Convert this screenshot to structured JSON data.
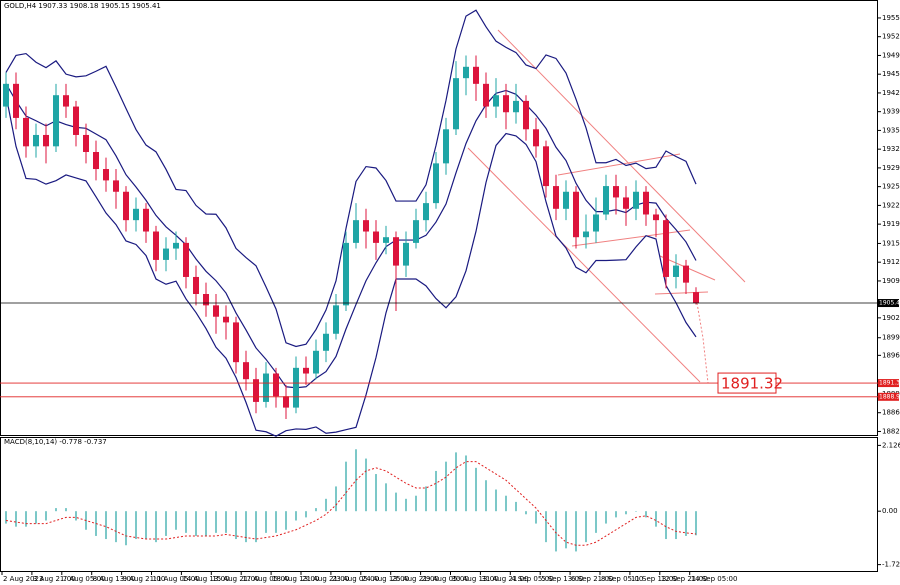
{
  "chart_data": {
    "type": "candlestick",
    "title": "GOLD,H4 1907.33 1908.18 1905.15 1905.41",
    "x_tick_labels": [
      "2 Aug 2023",
      "3 Aug 21:00",
      "7 Aug 05:00",
      "8 Aug 13:00",
      "9 Aug 21:00",
      "11 Aug 05:00",
      "14 Aug 13:00",
      "15 Aug 21:00",
      "17 Aug 05:00",
      "18 Aug 13:00",
      "21 Aug 21:00",
      "23 Aug 05:00",
      "24 Aug 13:00",
      "25 Aug 21:00",
      "29 Aug 05:00",
      "30 Aug 13:00",
      "31 Aug 21:00",
      "4 Sep 05:00",
      "5 Sep 13:00",
      "6 Sep 21:00",
      "8 Sep 05:00",
      "11 Sep 13:00",
      "12 Sep 21:00",
      "14 Sep 05:00"
    ],
    "open": [
      1940,
      1944,
      1938,
      1933,
      1935,
      1933,
      1942,
      1940,
      1935,
      1932,
      1929,
      1927,
      1925,
      1920,
      1922,
      1918,
      1913,
      1915,
      1916,
      1910,
      1907,
      1905,
      1903,
      1902,
      1895,
      1892,
      1888,
      1893,
      1889,
      1887,
      1894,
      1893,
      1897,
      1900,
      1905,
      1916,
      1920,
      1918,
      1916,
      1917,
      1912,
      1916,
      1920,
      1923,
      1930,
      1936,
      1945,
      1947,
      1944,
      1940,
      1942,
      1939,
      1941,
      1936,
      1933,
      1926,
      1922,
      1925,
      1917,
      1918,
      1921,
      1926,
      1924,
      1922,
      1925,
      1921,
      1920,
      1910,
      1912,
      1907.33
    ],
    "high": [
      1946,
      1946,
      1940,
      1937,
      1937,
      1944,
      1944,
      1941,
      1937,
      1934,
      1931,
      1929,
      1926,
      1924,
      1923,
      1919,
      1917,
      1918,
      1917,
      1912,
      1909,
      1907,
      1905,
      1903,
      1897,
      1894,
      1895,
      1894,
      1891,
      1896,
      1896,
      1899,
      1902,
      1907,
      1918,
      1923,
      1922,
      1920,
      1919,
      1918,
      1918,
      1922,
      1925,
      1932,
      1938,
      1948,
      1949,
      1949,
      1946,
      1945,
      1944,
      1944,
      1942,
      1938,
      1934,
      1928,
      1927,
      1926,
      1921,
      1924,
      1928,
      1928,
      1926,
      1927,
      1926,
      1922,
      1921,
      1914,
      1913,
      1908.18
    ],
    "low": [
      1938,
      1936,
      1931,
      1931,
      1930,
      1932,
      1938,
      1933,
      1930,
      1927,
      1925,
      1922,
      1918,
      1918,
      1916,
      1911,
      1911,
      1913,
      1908,
      1905,
      1903,
      1900,
      1899,
      1893,
      1890,
      1886,
      1887,
      1887,
      1885,
      1886,
      1891,
      1892,
      1895,
      1899,
      1904,
      1915,
      1915,
      1913,
      1914,
      1904,
      1910,
      1915,
      1918,
      1922,
      1928,
      1935,
      1942,
      1941,
      1938,
      1938,
      1936,
      1937,
      1934,
      1931,
      1924,
      1920,
      1920,
      1915,
      1915,
      1916,
      1920,
      1921,
      1919,
      1920,
      1919,
      1917,
      1908,
      1908,
      1907,
      1905.15
    ],
    "close": [
      1944,
      1938,
      1933,
      1935,
      1933,
      1942,
      1940,
      1935,
      1932,
      1929,
      1927,
      1925,
      1920,
      1922,
      1918,
      1913,
      1915,
      1916,
      1910,
      1907,
      1905,
      1903,
      1902,
      1895,
      1892,
      1888,
      1893,
      1889,
      1887,
      1894,
      1893,
      1897,
      1900,
      1905,
      1916,
      1920,
      1918,
      1916,
      1917,
      1912,
      1916,
      1920,
      1923,
      1930,
      1936,
      1945,
      1947,
      1944,
      1940,
      1942,
      1939,
      1941,
      1936,
      1933,
      1926,
      1922,
      1925,
      1917,
      1918,
      1921,
      1926,
      1924,
      1922,
      1925,
      1921,
      1920,
      1910,
      1912,
      1909,
      1905.41
    ],
    "bull_color": "#1fa5a5",
    "bear_color": "#dc143c",
    "ylim": [
      1882.0,
      1957.0
    ],
    "yticks": [
      {
        "value": 1955.6,
        "label": "1955.60"
      },
      {
        "value": 1952.3,
        "label": "1952.30"
      },
      {
        "value": 1949.0,
        "label": "1949.00"
      },
      {
        "value": 1945.7,
        "label": "1945.70"
      },
      {
        "value": 1942.4,
        "label": "1942.40"
      },
      {
        "value": 1939.1,
        "label": "1939.10"
      },
      {
        "value": 1935.8,
        "label": "1935.80"
      },
      {
        "value": 1932.5,
        "label": "1932.50"
      },
      {
        "value": 1929.2,
        "label": "1929.20"
      },
      {
        "value": 1925.9,
        "label": "1925.90"
      },
      {
        "value": 1922.6,
        "label": "1922.60"
      },
      {
        "value": 1919.3,
        "label": "1919.30"
      },
      {
        "value": 1915.9,
        "label": "1915.90"
      },
      {
        "value": 1912.6,
        "label": "1912.60"
      },
      {
        "value": 1909.3,
        "label": "1909.30"
      },
      {
        "value": 1902.8,
        "label": "1902.80"
      },
      {
        "value": 1899.3,
        "label": "1899.30"
      },
      {
        "value": 1896.2,
        "label": "1896.20"
      },
      {
        "value": 1889.4,
        "label": "1889.40"
      },
      {
        "value": 1886.1,
        "label": "1886.10"
      },
      {
        "value": 1882.8,
        "label": "1882.80"
      }
    ],
    "price_lines": [
      {
        "value": 1905.41,
        "label": "1905.41",
        "color": "#000000"
      },
      {
        "value": 1891.32,
        "label": "1891.32",
        "color": "#e02020"
      },
      {
        "value": 1888.9,
        "label": "1888.90",
        "color": "#e02020"
      }
    ],
    "annotation": {
      "value": 1891.32,
      "label": "1891.32"
    },
    "macd": {
      "title": "MACD(8,10,14) -0.778 -0.737",
      "histogram": [
        -0.4,
        -0.5,
        -0.5,
        -0.4,
        -0.3,
        0.1,
        0.1,
        -0.3,
        -0.6,
        -0.8,
        -0.9,
        -1.0,
        -1.1,
        -0.9,
        -0.9,
        -1.0,
        -0.8,
        -0.6,
        -0.7,
        -0.8,
        -0.8,
        -0.7,
        -0.7,
        -0.9,
        -1.0,
        -1.0,
        -0.7,
        -0.7,
        -0.6,
        -0.3,
        -0.2,
        0.1,
        0.4,
        0.8,
        1.6,
        2.0,
        1.7,
        1.2,
        0.9,
        0.6,
        0.4,
        0.5,
        0.8,
        1.3,
        1.6,
        1.9,
        1.8,
        1.4,
        1.0,
        0.7,
        0.5,
        0.3,
        -0.1,
        -0.4,
        -1.0,
        -1.3,
        -1.2,
        -1.3,
        -1.0,
        -0.7,
        -0.4,
        -0.2,
        -0.1,
        0.0,
        -0.2,
        -0.5,
        -0.9,
        -0.9,
        -0.8,
        -0.778
      ],
      "signal": [
        -0.3,
        -0.35,
        -0.4,
        -0.4,
        -0.4,
        -0.3,
        -0.2,
        -0.2,
        -0.3,
        -0.4,
        -0.5,
        -0.65,
        -0.8,
        -0.85,
        -0.9,
        -0.9,
        -0.9,
        -0.85,
        -0.8,
        -0.8,
        -0.8,
        -0.8,
        -0.75,
        -0.8,
        -0.85,
        -0.9,
        -0.85,
        -0.8,
        -0.7,
        -0.6,
        -0.45,
        -0.3,
        -0.1,
        0.2,
        0.6,
        1.0,
        1.3,
        1.4,
        1.3,
        1.1,
        0.9,
        0.75,
        0.75,
        0.9,
        1.1,
        1.4,
        1.6,
        1.6,
        1.4,
        1.2,
        1.0,
        0.7,
        0.4,
        0.1,
        -0.3,
        -0.7,
        -1.0,
        -1.1,
        -1.1,
        -1.0,
        -0.8,
        -0.6,
        -0.4,
        -0.2,
        -0.15,
        -0.3,
        -0.5,
        -0.65,
        -0.7,
        -0.737
      ],
      "histogram_color": "#7cc8c8",
      "signal_color": "#e02020",
      "ylim": [
        -1.9,
        2.3
      ],
      "yticks": [
        {
          "value": 2.126,
          "label": "2.126"
        },
        {
          "value": 0,
          "label": "0.00"
        },
        {
          "value": -1.726,
          "label": "-1.726"
        }
      ]
    }
  }
}
